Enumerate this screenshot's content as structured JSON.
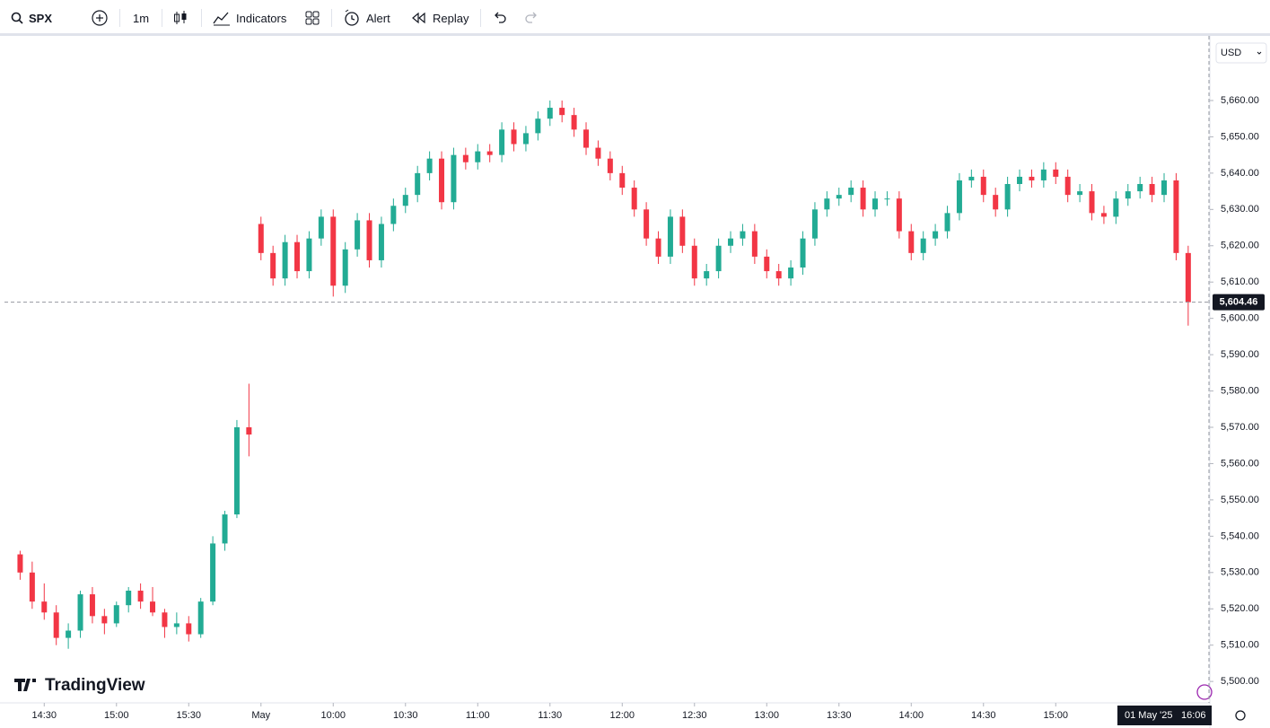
{
  "toolbar": {
    "symbol": "SPX",
    "interval": "1m",
    "indicators": "Indicators",
    "alert": "Alert",
    "replay": "Replay"
  },
  "logo": "TradingView",
  "chart_data": {
    "type": "candlestick",
    "currency": "USD",
    "up_color": "#22ab94",
    "down_color": "#f23645",
    "open": [
      5535,
      5530,
      5522,
      5519,
      5512,
      5514,
      5524,
      5518,
      5516,
      5521,
      5525,
      5522,
      5519,
      5515,
      5516,
      5513,
      5522,
      5538,
      5546,
      5570,
      5626,
      5618,
      5611,
      5621,
      5613,
      5622,
      5628,
      5609,
      5619,
      5627,
      5616,
      5626,
      5631,
      5634,
      5640,
      5644,
      5632,
      5645,
      5643,
      5646,
      5645,
      5652,
      5648,
      5651,
      5655,
      5658,
      5656,
      5652,
      5647,
      5644,
      5640,
      5636,
      5630,
      5622,
      5617,
      5628,
      5620,
      5611,
      5613,
      5620,
      5622,
      5624,
      5617,
      5613,
      5611,
      5614,
      5622,
      5630,
      5633,
      5634,
      5636,
      5630,
      5633,
      5633,
      5624,
      5618,
      5622,
      5624,
      5629,
      5638,
      5639,
      5634,
      5630,
      5637,
      5639,
      5638,
      5641,
      5639,
      5634,
      5635,
      5629,
      5628,
      5633,
      5635,
      5637,
      5634,
      5638,
      5618
    ],
    "high": [
      5536,
      5533,
      5527,
      5521,
      5516,
      5525,
      5526,
      5520,
      5522,
      5526,
      5527,
      5526,
      5520,
      5519,
      5518,
      5523,
      5540,
      5547,
      5572,
      5582,
      5628,
      5620,
      5623,
      5623,
      5624,
      5630,
      5630,
      5621,
      5629,
      5629,
      5628,
      5633,
      5636,
      5642,
      5646,
      5646,
      5647,
      5647,
      5648,
      5648,
      5654,
      5654,
      5653,
      5657,
      5660,
      5660,
      5658,
      5654,
      5649,
      5646,
      5642,
      5638,
      5632,
      5624,
      5630,
      5630,
      5622,
      5615,
      5622,
      5624,
      5626,
      5626,
      5619,
      5615,
      5616,
      5624,
      5632,
      5635,
      5636,
      5638,
      5638,
      5635,
      5635,
      5635,
      5626,
      5624,
      5626,
      5631,
      5640,
      5641,
      5641,
      5636,
      5639,
      5641,
      5641,
      5643,
      5643,
      5641,
      5637,
      5637,
      5631,
      5635,
      5637,
      5639,
      5639,
      5640,
      5640,
      5620
    ],
    "low": [
      5528,
      5520,
      5517,
      5510,
      5509,
      5512,
      5516,
      5513,
      5515,
      5519,
      5520,
      5518,
      5512,
      5513,
      5511,
      5512,
      5521,
      5536,
      5545,
      5562,
      5616,
      5609,
      5609,
      5611,
      5611,
      5620,
      5606,
      5607,
      5617,
      5614,
      5614,
      5624,
      5629,
      5632,
      5638,
      5630,
      5630,
      5641,
      5641,
      5643,
      5643,
      5646,
      5646,
      5649,
      5653,
      5654,
      5650,
      5645,
      5642,
      5638,
      5634,
      5628,
      5620,
      5615,
      5615,
      5618,
      5609,
      5609,
      5611,
      5618,
      5620,
      5615,
      5611,
      5609,
      5609,
      5612,
      5620,
      5628,
      5631,
      5632,
      5628,
      5628,
      5631,
      5622,
      5616,
      5616,
      5620,
      5622,
      5627,
      5636,
      5632,
      5628,
      5628,
      5635,
      5636,
      5636,
      5637,
      5632,
      5632,
      5627,
      5626,
      5626,
      5631,
      5633,
      5632,
      5632,
      5616,
      5598
    ],
    "close": [
      5530,
      5522,
      5519,
      5512,
      5514,
      5524,
      5518,
      5516,
      5521,
      5525,
      5522,
      5519,
      5515,
      5516,
      5513,
      5522,
      5538,
      5546,
      5570,
      5568,
      5618,
      5611,
      5621,
      5613,
      5622,
      5628,
      5609,
      5619,
      5627,
      5616,
      5626,
      5631,
      5634,
      5640,
      5644,
      5632,
      5645,
      5643,
      5646,
      5645,
      5652,
      5648,
      5651,
      5655,
      5658,
      5656,
      5652,
      5647,
      5644,
      5640,
      5636,
      5630,
      5622,
      5617,
      5628,
      5620,
      5611,
      5613,
      5620,
      5622,
      5624,
      5617,
      5613,
      5611,
      5614,
      5622,
      5630,
      5633,
      5634,
      5636,
      5630,
      5633,
      5633,
      5624,
      5618,
      5622,
      5624,
      5629,
      5638,
      5639,
      5634,
      5630,
      5637,
      5639,
      5638,
      5641,
      5639,
      5634,
      5635,
      5629,
      5628,
      5633,
      5635,
      5637,
      5634,
      5638,
      5618,
      5604.46
    ],
    "xlim": [
      -1.3,
      98.8
    ],
    "xticks": [
      {
        "value": 2,
        "label": "14:30"
      },
      {
        "value": 8,
        "label": "15:00"
      },
      {
        "value": 14,
        "label": "15:30"
      },
      {
        "value": 20,
        "label": "May"
      },
      {
        "value": 26,
        "label": "10:00"
      },
      {
        "value": 32,
        "label": "10:30"
      },
      {
        "value": 38,
        "label": "11:00"
      },
      {
        "value": 44,
        "label": "11:30"
      },
      {
        "value": 50,
        "label": "12:00"
      },
      {
        "value": 56,
        "label": "12:30"
      },
      {
        "value": 62,
        "label": "13:00"
      },
      {
        "value": 68,
        "label": "13:30"
      },
      {
        "value": 74,
        "label": "14:00"
      },
      {
        "value": 80,
        "label": "14:30"
      },
      {
        "value": 86,
        "label": "15:00"
      }
    ],
    "ylim": [
      5494.1,
      5677.3
    ],
    "yticks": [
      {
        "value": 5500,
        "label": "5,500.00"
      },
      {
        "value": 5510,
        "label": "5,510.00"
      },
      {
        "value": 5520,
        "label": "5,520.00"
      },
      {
        "value": 5530,
        "label": "5,530.00"
      },
      {
        "value": 5540,
        "label": "5,540.00"
      },
      {
        "value": 5550,
        "label": "5,550.00"
      },
      {
        "value": 5560,
        "label": "5,560.00"
      },
      {
        "value": 5570,
        "label": "5,570.00"
      },
      {
        "value": 5580,
        "label": "5,580.00"
      },
      {
        "value": 5590,
        "label": "5,590.00"
      },
      {
        "value": 5600,
        "label": "5,600.00"
      },
      {
        "value": 5610,
        "label": "5,610.00"
      },
      {
        "value": 5620,
        "label": "5,620.00"
      },
      {
        "value": 5630,
        "label": "5,630.00"
      },
      {
        "value": 5640,
        "label": "5,640.00"
      },
      {
        "value": 5650,
        "label": "5,650.00"
      },
      {
        "value": 5660,
        "label": "5,660.00"
      }
    ],
    "last_price": {
      "value": 5604.46,
      "label": "5,604.46"
    },
    "crosshair_date": "01 May '25",
    "crosshair_time": "16:06"
  }
}
